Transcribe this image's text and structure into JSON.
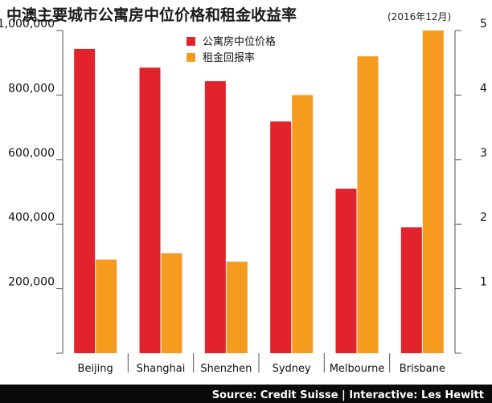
{
  "chart_data": {
    "type": "bar",
    "title": "中澳主要城市公寓房中位价格和租金收益率",
    "subtitle": "(2016年12月)",
    "categories": [
      "Beijing",
      "Shanghai",
      "Shenzhen",
      "Sydney",
      "Melbourne",
      "Brisbane"
    ],
    "series": [
      {
        "name": "公寓房中位价格",
        "axis": "left",
        "color": "#e3232c",
        "values": [
          943000,
          885000,
          843000,
          718000,
          510000,
          390000
        ]
      },
      {
        "name": "租金回报率",
        "axis": "right",
        "color": "#f59c1f",
        "values": [
          1.45,
          1.55,
          1.42,
          4.0,
          4.6,
          5.0
        ]
      }
    ],
    "left_axis": {
      "ylim": [
        0,
        1000000
      ],
      "ticks": [
        200000,
        400000,
        600000,
        800000,
        1000000
      ],
      "tick_labels": [
        "200,000",
        "400,000",
        "600,000",
        "800,000",
        "1,000,000"
      ]
    },
    "right_axis": {
      "ylim": [
        0,
        5
      ],
      "ticks": [
        1,
        2,
        3,
        4,
        5
      ],
      "tick_labels": [
        "1",
        "2",
        "3",
        "4",
        "5"
      ]
    },
    "legend_position": "top-center",
    "grid": false
  },
  "source": "Source: Credit Suisse | Interactive: Les Hewitt",
  "colors": {
    "price": "#e3232c",
    "yield": "#f59c1f",
    "axis": "#555555",
    "source_bg": "#0a0a0a"
  }
}
